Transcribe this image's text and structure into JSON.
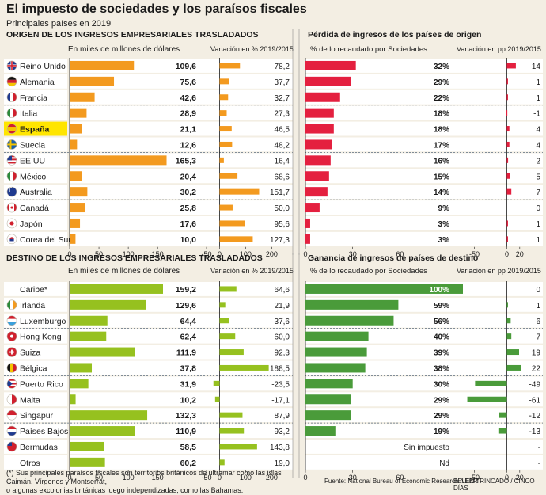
{
  "header": {
    "title": "El impuesto de sociedades y los paraísos fiscales",
    "subtitle": "Principales países en 2019"
  },
  "colors": {
    "origin_bar": "#f39a1f",
    "dest_bar": "#96c11f",
    "loss_bar": "#e4203f",
    "gain_bar": "#4a9b3a",
    "highlight_bg": "#ffe500",
    "row_bg": "#ffffff",
    "page_bg": "#f3eee3"
  },
  "chart_data": [
    {
      "id": "origen",
      "type": "table",
      "section_title": "ORIGEN DE LOS INGRESOS EMPRESARIALES TRASLADADOS",
      "right_title": "Pérdida de ingresos de los países de origen",
      "col_headers": {
        "amount": "En miles de millones de dólares",
        "variation": "Variación en % 2019/2015",
        "pct": "% de lo recaudado por Sociedades",
        "pp": "Variación en pp 2019/2015"
      },
      "ticks": {
        "amount": [
          "0",
          "50",
          "100",
          "150"
        ],
        "variation": [
          "-50",
          "0",
          "100",
          "200"
        ],
        "pct": [
          "0",
          "30",
          "60"
        ],
        "pp": [
          "-50",
          "0",
          "20"
        ]
      },
      "ranges": {
        "amount": [
          0,
          170
        ],
        "variation": [
          -50,
          220
        ],
        "pct": [
          0,
          100
        ],
        "pp": [
          -80,
          30
        ]
      },
      "rows": [
        {
          "flag": "uk",
          "country": "Reino Unido",
          "amount": 109.6,
          "amount_label": "109,6",
          "variation": 78.2,
          "variation_label": "78,2",
          "pct": 32,
          "pct_label": "32%",
          "pp": 14,
          "pp_label": "14"
        },
        {
          "flag": "de",
          "country": "Alemania",
          "amount": 75.6,
          "amount_label": "75,6",
          "variation": 37.7,
          "variation_label": "37,7",
          "pct": 29,
          "pct_label": "29%",
          "pp": 1,
          "pp_label": "1"
        },
        {
          "flag": "fr",
          "country": "Francia",
          "amount": 42.6,
          "amount_label": "42,6",
          "variation": 32.7,
          "variation_label": "32,7",
          "pct": 22,
          "pct_label": "22%",
          "pp": 1,
          "pp_label": "1"
        },
        {
          "flag": "it",
          "country": "Italia",
          "amount": 28.9,
          "amount_label": "28,9",
          "variation": 27.3,
          "variation_label": "27,3",
          "pct": 18,
          "pct_label": "18%",
          "pp": -1,
          "pp_label": "-1"
        },
        {
          "flag": "es",
          "country": "España",
          "highlight": true,
          "amount": 21.1,
          "amount_label": "21,1",
          "variation": 46.5,
          "variation_label": "46,5",
          "pct": 18,
          "pct_label": "18%",
          "pp": 4,
          "pp_label": "4"
        },
        {
          "flag": "se",
          "country": "Suecia",
          "amount": 12.6,
          "amount_label": "12,6",
          "variation": 48.2,
          "variation_label": "48,2",
          "pct": 17,
          "pct_label": "17%",
          "pp": 4,
          "pp_label": "4"
        },
        {
          "flag": "us",
          "country": "EE UU",
          "amount": 165.3,
          "amount_label": "165,3",
          "variation": 16.4,
          "variation_label": "16,4",
          "pct": 16,
          "pct_label": "16%",
          "pp": 2,
          "pp_label": "2"
        },
        {
          "flag": "mx",
          "country": "México",
          "amount": 20.4,
          "amount_label": "20,4",
          "variation": 68.6,
          "variation_label": "68,6",
          "pct": 15,
          "pct_label": "15%",
          "pp": 5,
          "pp_label": "5"
        },
        {
          "flag": "au",
          "country": "Australia",
          "amount": 30.2,
          "amount_label": "30,2",
          "variation": 151.7,
          "variation_label": "151,7",
          "pct": 14,
          "pct_label": "14%",
          "pp": 7,
          "pp_label": "7"
        },
        {
          "flag": "ca",
          "country": "Canadá",
          "amount": 25.8,
          "amount_label": "25,8",
          "variation": 50.0,
          "variation_label": "50,0",
          "pct": 9,
          "pct_label": "9%",
          "pp": 0,
          "pp_label": "0"
        },
        {
          "flag": "jp",
          "country": "Japón",
          "amount": 17.6,
          "amount_label": "17,6",
          "variation": 95.6,
          "variation_label": "95,6",
          "pct": 3,
          "pct_label": "3%",
          "pp": 1,
          "pp_label": "1"
        },
        {
          "flag": "kr",
          "country": "Corea del Sur",
          "amount": 10.0,
          "amount_label": "10,0",
          "variation": 127.3,
          "variation_label": "127,3",
          "pct": 3,
          "pct_label": "3%",
          "pp": 1,
          "pp_label": "1"
        }
      ]
    },
    {
      "id": "destino",
      "type": "table",
      "section_title": "DESTINO DE LOS INGRESOS EMPRESARIALES TRASLADADOS",
      "right_title": "Ganancia de ingresos de países de destino",
      "col_headers": {
        "amount": "En miles de millones de dólares",
        "variation": "Variación en % 2019/2015",
        "pct": "% de lo recaudado por Sociedades",
        "pp": "Variación en pp 2019/2015"
      },
      "ticks": {
        "amount": [
          "0",
          "50",
          "100",
          "150"
        ],
        "variation": [
          "-50",
          "0",
          "100",
          "200"
        ],
        "pct": [
          "0",
          "30",
          "60"
        ],
        "pp": [
          "-50",
          "0",
          "20"
        ]
      },
      "ranges": {
        "amount": [
          0,
          170
        ],
        "variation": [
          -50,
          220
        ],
        "pct": [
          0,
          100
        ],
        "pp": [
          -80,
          30
        ]
      },
      "rows": [
        {
          "flag": "caribe",
          "country": "Caribe*",
          "amount": 159.2,
          "amount_label": "159,2",
          "variation": 64.6,
          "variation_label": "64,6",
          "pct": 100,
          "pct_label": "100%",
          "pct_inside": true,
          "pp": 0,
          "pp_label": "0"
        },
        {
          "flag": "ie",
          "country": "Irlanda",
          "amount": 129.6,
          "amount_label": "129,6",
          "variation": 21.9,
          "variation_label": "21,9",
          "pct": 59,
          "pct_label": "59%",
          "pp": 1,
          "pp_label": "1"
        },
        {
          "flag": "lu",
          "country": "Luxemburgo",
          "amount": 64.4,
          "amount_label": "64,4",
          "variation": 37.6,
          "variation_label": "37,6",
          "pct": 56,
          "pct_label": "56%",
          "pp": 6,
          "pp_label": "6"
        },
        {
          "flag": "hk",
          "country": "Hong Kong",
          "amount": 62.4,
          "amount_label": "62,4",
          "variation": 60.0,
          "variation_label": "60,0",
          "pct": 40,
          "pct_label": "40%",
          "pp": 7,
          "pp_label": "7"
        },
        {
          "flag": "ch",
          "country": "Suiza",
          "amount": 111.9,
          "amount_label": "111,9",
          "variation": 92.3,
          "variation_label": "92,3",
          "pct": 39,
          "pct_label": "39%",
          "pp": 19,
          "pp_label": "19"
        },
        {
          "flag": "be",
          "country": "Bélgica",
          "amount": 37.8,
          "amount_label": "37,8",
          "variation": 188.5,
          "variation_label": "188,5",
          "pct": 38,
          "pct_label": "38%",
          "pp": 22,
          "pp_label": "22"
        },
        {
          "flag": "pr",
          "country": "Puerto Rico",
          "amount": 31.9,
          "amount_label": "31,9",
          "variation": -23.5,
          "variation_label": "-23,5",
          "pct": 30,
          "pct_label": "30%",
          "pp": -49,
          "pp_label": "-49"
        },
        {
          "flag": "mt",
          "country": "Malta",
          "amount": 10.2,
          "amount_label": "10,2",
          "variation": -17.1,
          "variation_label": "-17,1",
          "pct": 29,
          "pct_label": "29%",
          "pp": -61,
          "pp_label": "-61"
        },
        {
          "flag": "sg",
          "country": "Singapur",
          "amount": 132.3,
          "amount_label": "132,3",
          "variation": 87.9,
          "variation_label": "87,9",
          "pct": 29,
          "pct_label": "29%",
          "pp": -12,
          "pp_label": "-12"
        },
        {
          "flag": "nl",
          "country": "Países Bajos",
          "amount": 110.9,
          "amount_label": "110,9",
          "variation": 93.2,
          "variation_label": "93,2",
          "pct": 19,
          "pct_label": "19%",
          "pp": -13,
          "pp_label": "-13"
        },
        {
          "flag": "bm",
          "country": "Bermudas",
          "amount": 58.5,
          "amount_label": "58,5",
          "variation": 143.8,
          "variation_label": "143,8",
          "pct": null,
          "pct_label": "Sin impuesto",
          "pp": null,
          "pp_label": "-"
        },
        {
          "flag": "none",
          "country": "Otros",
          "amount": 60.2,
          "amount_label": "60,2",
          "variation": 19.0,
          "variation_label": "19,0",
          "pct": null,
          "pct_label": "Nd",
          "pp": null,
          "pp_label": "-"
        }
      ]
    }
  ],
  "footer": {
    "note_line1": "(*) Sus principales paraísos fiscales son territorios británicos de ultramar como las islas Caimán, Vírgenes y Montserrat,",
    "note_line2": "o algunas excolonias británicas luego independizadas, como las Bahamas.",
    "source": "Fuente: National Bureau of Economic Research NBER",
    "credit": "BELÉN TRINCADO / CINCO DÍAS"
  }
}
